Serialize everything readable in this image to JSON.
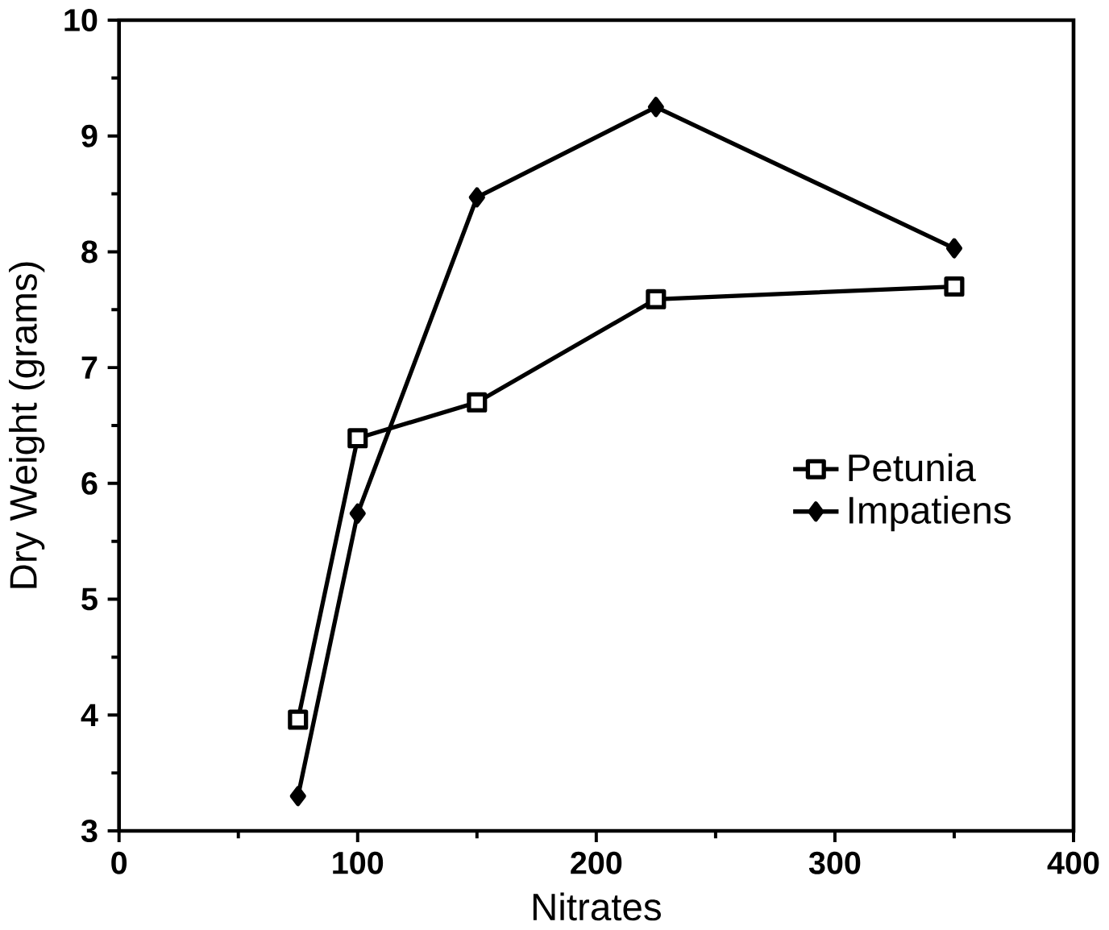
{
  "chart_data": {
    "type": "line",
    "xlabel": "Nitrates",
    "ylabel": "Dry Weight (grams)",
    "xlim": [
      0,
      400
    ],
    "xticks": [
      0,
      100,
      200,
      300,
      400
    ],
    "ylim": [
      3,
      10
    ],
    "yticks": [
      3,
      4,
      5,
      6,
      7,
      8,
      9,
      10
    ],
    "legend": "right",
    "grid": false,
    "line_style": "solid",
    "series": [
      {
        "name": "Petunia",
        "color": "#000000",
        "marker": "square",
        "x": [
          75,
          100,
          150,
          225,
          350
        ],
        "values": [
          3.96,
          6.39,
          6.7,
          7.59,
          7.7
        ]
      },
      {
        "name": "Impatiens",
        "color": "#000000",
        "marker": "diamond",
        "x": [
          75,
          100,
          150,
          225,
          350
        ],
        "values": [
          3.3,
          5.74,
          8.47,
          9.25,
          8.03
        ]
      }
    ]
  }
}
